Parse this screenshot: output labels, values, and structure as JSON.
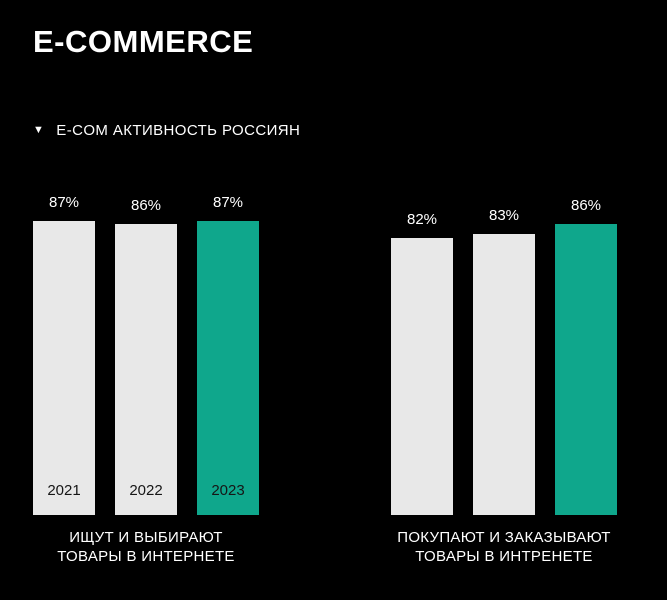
{
  "title": "E-COMMERCE",
  "subtitle": {
    "marker": "▼",
    "text": "E-COM АКТИВНОСТЬ РОССИЯН"
  },
  "colors": {
    "background": "#000000",
    "bar_gray": "#e8e8e8",
    "bar_accent": "#0fa78c",
    "text_light": "#ffffff",
    "year_text_dark": "#161616"
  },
  "chart_data": {
    "type": "bar",
    "ylim": [
      0,
      100
    ],
    "legend_position": "none",
    "grid": false,
    "groups": [
      {
        "caption_lines": [
          "ИЩУТ И ВЫБИРАЮТ",
          "ТОВАРЫ В ИНТЕРНЕТЕ"
        ],
        "bars": [
          {
            "value": 87,
            "label": "87%",
            "year": "2021",
            "accent": false
          },
          {
            "value": 86,
            "label": "86%",
            "year": "2022",
            "accent": false
          },
          {
            "value": 87,
            "label": "87%",
            "year": "2023",
            "accent": true
          }
        ]
      },
      {
        "caption_lines": [
          "ПОКУПАЮТ И ЗАКАЗЫВАЮТ",
          "ТОВАРЫ В ИНТРЕНЕТЕ"
        ],
        "bars": [
          {
            "value": 82,
            "label": "82%",
            "year": "",
            "accent": false
          },
          {
            "value": 83,
            "label": "83%",
            "year": "",
            "accent": false
          },
          {
            "value": 86,
            "label": "86%",
            "year": "",
            "accent": true
          }
        ]
      }
    ]
  }
}
